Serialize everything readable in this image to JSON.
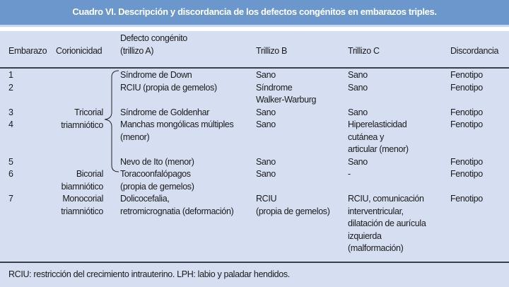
{
  "title": "Cuadro VI. Descripción y discordancia de los defectos congénitos en embarazos triples.",
  "columns": [
    "Embarazo",
    "Corionicidad",
    "Defecto congénito",
    "(trillizo A)",
    "Trillizo B",
    "Trillizo C",
    "Discordancia"
  ],
  "corionicidad": {
    "tricorial": [
      "Tricorial",
      "triamniótico"
    ],
    "bicorial": [
      "Bicorial",
      "biamniótico"
    ],
    "monocorial": [
      "Monocorial",
      "triamniótico"
    ]
  },
  "rows": [
    {
      "embarazo": "1",
      "a": [
        "Síndrome de Down"
      ],
      "b": [
        "Sano"
      ],
      "c": [
        "Sano"
      ],
      "d": "Fenotipo"
    },
    {
      "embarazo": "2",
      "a": [
        "RCIU (propia de gemelos)"
      ],
      "b": [
        "Síndrome",
        "Walker-Warburg"
      ],
      "c": [
        "Sano"
      ],
      "d": "Fenotipo"
    },
    {
      "embarazo": "3",
      "a": [
        "Síndrome de Goldenhar"
      ],
      "b": [
        "Sano"
      ],
      "c": [
        "Sano"
      ],
      "d": "Fenotipo"
    },
    {
      "embarazo": "4",
      "a": [
        "Manchas mongólicas múltiples",
        "(menor)"
      ],
      "b": [
        "Sano"
      ],
      "c": [
        "Hiperelasticidad",
        "cutánea y",
        "articular (menor)"
      ],
      "d": "Fenotipo"
    },
    {
      "embarazo": "5",
      "a": [
        "Nevo de Ito (menor)"
      ],
      "b": [
        "Sano"
      ],
      "c": [
        "Sano"
      ],
      "d": "Fenotipo"
    },
    {
      "embarazo": "6",
      "a": [
        "Toracoonfalópagos",
        "(propia de gemelos)"
      ],
      "b": [
        "Sano"
      ],
      "c": [
        "-"
      ],
      "d": "Fenotipo"
    },
    {
      "embarazo": "7",
      "a": [
        "Dolicocefalia,",
        "retromicrognatia (deformación)"
      ],
      "b": [
        "RCIU",
        "(propia de gemelos)"
      ],
      "c": [
        "RCIU, comunicación",
        "interventricular,",
        "dilatación de aurícula",
        "izquierda",
        "(malformación)"
      ],
      "d": "Fenotipo"
    }
  ],
  "footnote": "RCIU: restricción del crecimiento intrauterino. LPH: labio y paladar hendidos."
}
